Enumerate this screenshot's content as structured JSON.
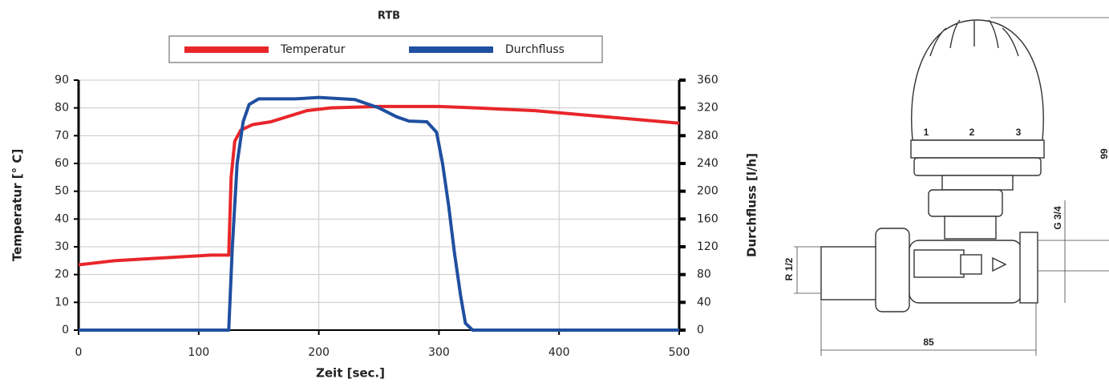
{
  "chart_data": {
    "type": "line",
    "title": "RTB",
    "x_label": "Zeit [sec.]",
    "y_label": "Temperatur [° C]",
    "y2_label": "Durchfluss [l/h]",
    "xlim": [
      0,
      500
    ],
    "xticks": [
      0,
      100,
      200,
      300,
      400,
      500
    ],
    "ylim": [
      0,
      90
    ],
    "yticks": [
      0,
      10,
      20,
      30,
      40,
      50,
      60,
      70,
      80,
      90
    ],
    "y2lim": [
      0,
      360
    ],
    "y2ticks": [
      0,
      40,
      80,
      120,
      160,
      200,
      240,
      280,
      320,
      360
    ],
    "grid": true,
    "legend": "top",
    "series": [
      {
        "name": "Temperatur",
        "color": "#e8262a",
        "x": [
          0,
          10,
          20,
          30,
          50,
          70,
          90,
          110,
          125,
          127,
          130,
          135,
          145,
          160,
          175,
          190,
          210,
          250,
          300,
          330,
          380,
          420,
          460,
          500
        ],
        "values": [
          23.5,
          24,
          24.5,
          25,
          25.5,
          26,
          26.5,
          27,
          27,
          55,
          68,
          72,
          74,
          75,
          77,
          79,
          80,
          80.5,
          80.5,
          80,
          79,
          77.5,
          76,
          74.5
        ]
      },
      {
        "name": "Durchfluss",
        "color": "#1f4fa0",
        "axis": "y2",
        "x": [
          0,
          125,
          128,
          132,
          137,
          142,
          150,
          180,
          200,
          230,
          250,
          265,
          275,
          290,
          298,
          303,
          308,
          313,
          318,
          322,
          328,
          500
        ],
        "values": [
          0,
          0,
          120,
          240,
          300,
          325,
          333,
          333,
          335,
          332,
          320,
          307,
          301,
          300,
          285,
          240,
          180,
          110,
          50,
          10,
          0,
          0
        ]
      }
    ]
  },
  "drawing": {
    "labels": [
      "1",
      "2",
      "3",
      "99",
      "G 3/4",
      "R 1/2",
      "85"
    ]
  }
}
